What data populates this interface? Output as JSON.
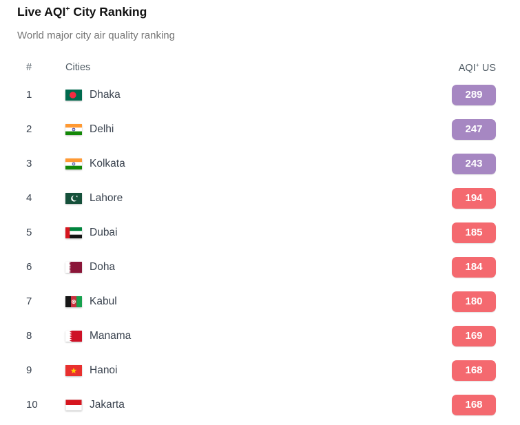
{
  "page": {
    "title_prefix": "Live AQI",
    "title_sup": "+",
    "title_suffix": " City Ranking",
    "subtitle": "World major city air quality ranking"
  },
  "table": {
    "columns": {
      "rank": "#",
      "cities": "Cities",
      "aqi_prefix": "AQI",
      "aqi_sup": "+",
      "aqi_suffix": " US"
    },
    "rows": [
      {
        "rank": "1",
        "city": "Dhaka",
        "flag": "flag-bangladesh",
        "aqi": "289",
        "level": "very-unhealthy"
      },
      {
        "rank": "2",
        "city": "Delhi",
        "flag": "flag-india",
        "aqi": "247",
        "level": "very-unhealthy"
      },
      {
        "rank": "3",
        "city": "Kolkata",
        "flag": "flag-india",
        "aqi": "243",
        "level": "very-unhealthy"
      },
      {
        "rank": "4",
        "city": "Lahore",
        "flag": "flag-pakistan",
        "aqi": "194",
        "level": "unhealthy"
      },
      {
        "rank": "5",
        "city": "Dubai",
        "flag": "flag-uae",
        "aqi": "185",
        "level": "unhealthy"
      },
      {
        "rank": "6",
        "city": "Doha",
        "flag": "flag-qatar",
        "aqi": "184",
        "level": "unhealthy"
      },
      {
        "rank": "7",
        "city": "Kabul",
        "flag": "flag-afghanistan",
        "aqi": "180",
        "level": "unhealthy"
      },
      {
        "rank": "8",
        "city": "Manama",
        "flag": "flag-bahrain",
        "aqi": "169",
        "level": "unhealthy"
      },
      {
        "rank": "9",
        "city": "Hanoi",
        "flag": "flag-vietnam",
        "aqi": "168",
        "level": "unhealthy"
      },
      {
        "rank": "10",
        "city": "Jakarta",
        "flag": "flag-indonesia",
        "aqi": "168",
        "level": "unhealthy"
      }
    ]
  },
  "colors": {
    "very-unhealthy": "#a687c2",
    "unhealthy": "#f4696f"
  }
}
